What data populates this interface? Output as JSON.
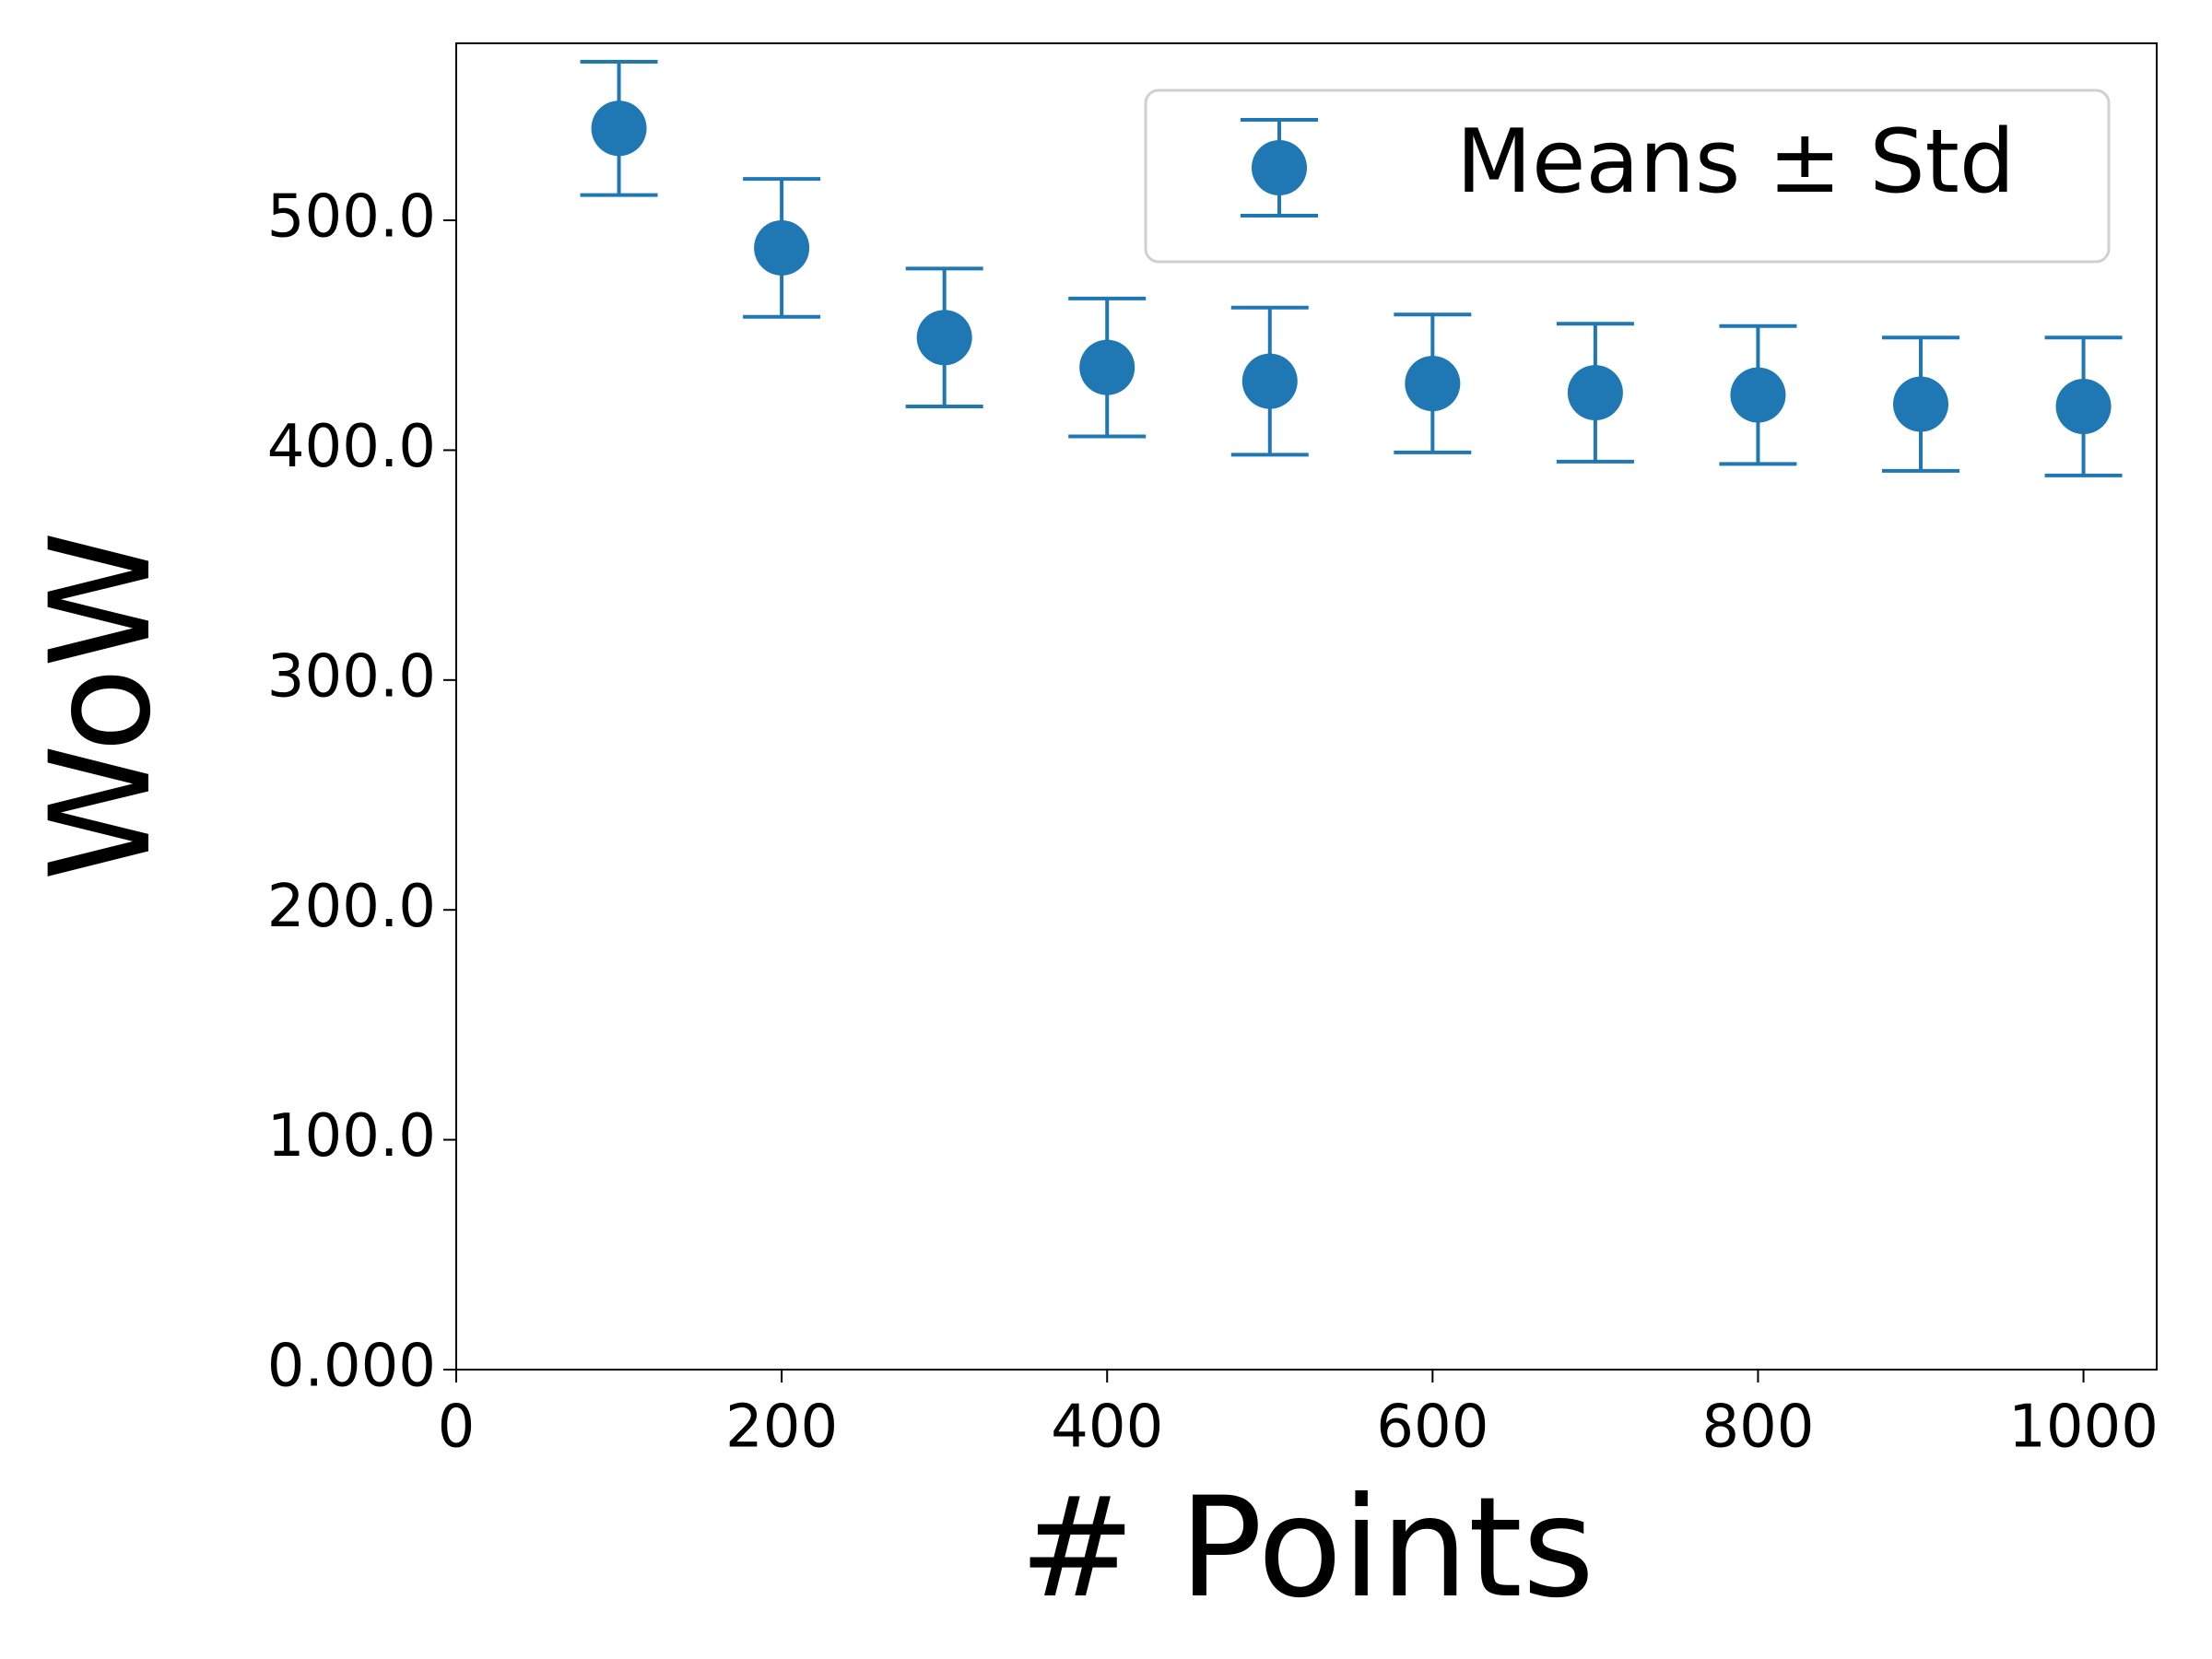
{
  "chart_data": {
    "type": "errorbar",
    "x_label": "# Points",
    "y_label": "WoW",
    "x": [
      100,
      200,
      300,
      400,
      500,
      600,
      700,
      800,
      900,
      1000
    ],
    "series": [
      {
        "name": "Means ± Std",
        "color": "#1f77b4",
        "values": [
          540,
          488,
          449,
          436,
          430,
          429,
          425,
          424,
          420,
          419
        ],
        "errors": [
          29,
          30,
          30,
          30,
          32,
          30,
          30,
          30,
          29,
          30
        ]
      }
    ],
    "xlim": [
      0,
      1045
    ],
    "xticks": [
      0,
      200,
      400,
      600,
      800,
      1000
    ],
    "ylim": [
      0,
      577
    ],
    "yticks": [
      {
        "value": 0,
        "label": "0.000"
      },
      {
        "value": 100,
        "label": "100.0"
      },
      {
        "value": 200,
        "label": "200.0"
      },
      {
        "value": 300,
        "label": "300.0"
      },
      {
        "value": 400,
        "label": "400.0"
      },
      {
        "value": 500,
        "label": "500.0"
      }
    ],
    "legend": "upper right"
  }
}
